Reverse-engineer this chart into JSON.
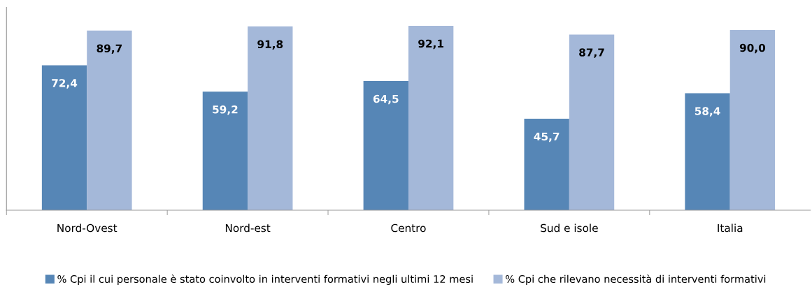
{
  "chart_data": {
    "type": "bar",
    "categories": [
      "Nord-Ovest",
      "Nord-est",
      "Centro",
      "Sud e isole",
      "Italia"
    ],
    "series": [
      {
        "name": "% Cpi il cui personale è stato coinvolto in interventi formativi negli ultimi 12 mesi",
        "color": "#5686b6",
        "values": [
          72.4,
          59.2,
          64.5,
          45.7,
          58.4
        ],
        "value_labels": [
          "72,4",
          "59,2",
          "64,5",
          "45,7",
          "58,4"
        ]
      },
      {
        "name": "% Cpi che rilevano necessità di interventi formativi",
        "color": "#a4b8d9",
        "values": [
          89.7,
          91.8,
          92.1,
          87.7,
          90.0
        ],
        "value_labels": [
          "89,7",
          "91,8",
          "92,1",
          "87,7",
          "90,0"
        ]
      }
    ],
    "legend": "bottom",
    "grid": false
  }
}
